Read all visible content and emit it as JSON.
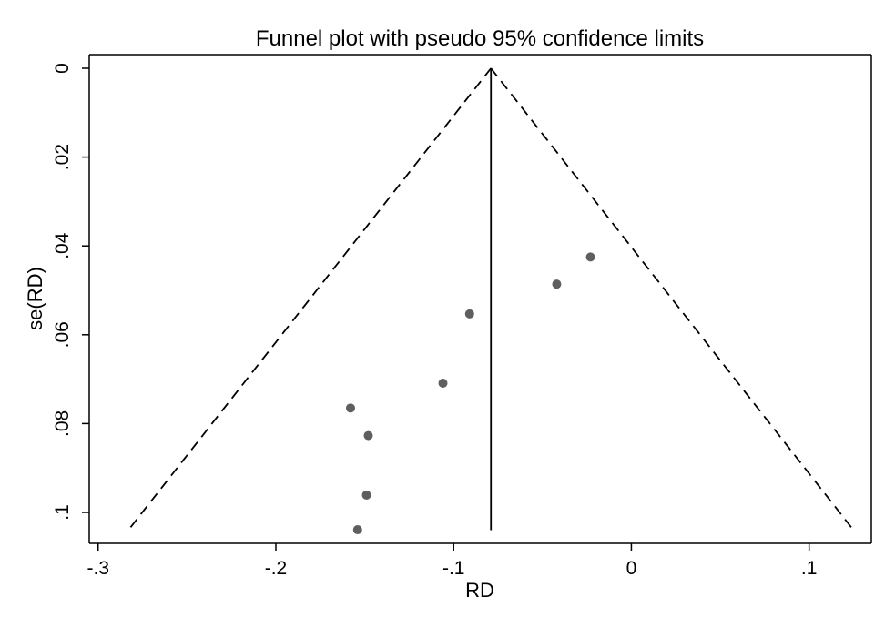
{
  "chart_data": {
    "type": "scatter",
    "title": "Funnel plot with pseudo 95% confidence limits",
    "xlabel": "RD",
    "ylabel": "se(RD)",
    "xlim": [
      -0.305,
      0.135
    ],
    "ylim": [
      0,
      0.107
    ],
    "y_reversed": true,
    "x_ticks": [
      -0.3,
      -0.2,
      -0.1,
      0,
      0.1
    ],
    "x_tick_labels": [
      "-.3",
      "-.2",
      "-.1",
      "0",
      ".1"
    ],
    "y_ticks": [
      0,
      0.02,
      0.04,
      0.06,
      0.08,
      0.1
    ],
    "y_tick_labels": [
      "0",
      ".02",
      ".04",
      ".06",
      ".08",
      ".1"
    ],
    "pooled_estimate": -0.079,
    "ci_limits": {
      "apex": [
        -0.079,
        0
      ],
      "se_max": 0.104,
      "lower_at_se_max": -0.283,
      "upper_at_se_max": 0.125
    },
    "points": [
      {
        "x": -0.023,
        "y": 0.0425
      },
      {
        "x": -0.042,
        "y": 0.0486
      },
      {
        "x": -0.091,
        "y": 0.0553
      },
      {
        "x": -0.106,
        "y": 0.0709
      },
      {
        "x": -0.158,
        "y": 0.0765
      },
      {
        "x": -0.148,
        "y": 0.0827
      },
      {
        "x": -0.149,
        "y": 0.0961
      },
      {
        "x": -0.154,
        "y": 0.1039
      }
    ],
    "grid": false,
    "legend": "none"
  }
}
